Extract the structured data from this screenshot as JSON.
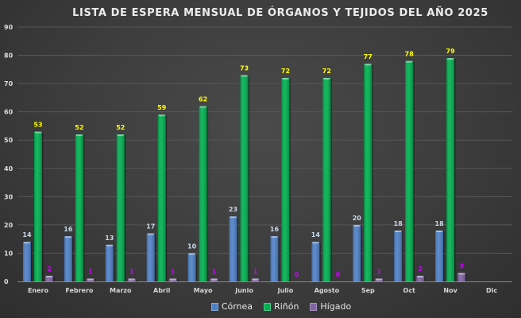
{
  "chart_data": {
    "type": "bar",
    "title": "LISTA DE ESPERA MENSUAL DE ÓRGANOS Y TEJIDOS  DEL AÑO 2025",
    "xlabel": "",
    "ylabel": "",
    "ylim": [
      0,
      90
    ],
    "yticks": [
      0,
      10,
      20,
      30,
      40,
      50,
      60,
      70,
      80,
      90
    ],
    "grid": true,
    "legend_position": "bottom",
    "categories": [
      "Enero",
      "Febrero",
      "Marzo",
      "Abril",
      "Mayo",
      "Junio",
      "Julio",
      "Agosto",
      "Sep",
      "Oct",
      "Nov",
      "Dic"
    ],
    "series": [
      {
        "name": "Córnea",
        "color": "#4f81c7",
        "label_color": "#c8d8ea",
        "values": [
          14,
          16,
          13,
          17,
          10,
          23,
          16,
          14,
          20,
          18,
          18,
          null
        ]
      },
      {
        "name": "Riñón",
        "color": "#00b050",
        "label_color": "#ffff00",
        "values": [
          53,
          52,
          52,
          59,
          62,
          73,
          72,
          72,
          77,
          78,
          79,
          null
        ]
      },
      {
        "name": "Hígado",
        "color": "#8064a2",
        "label_color": "#cc00ff",
        "values": [
          2,
          1,
          1,
          1,
          1,
          1,
          0,
          0,
          1,
          2,
          3,
          null
        ]
      }
    ]
  }
}
